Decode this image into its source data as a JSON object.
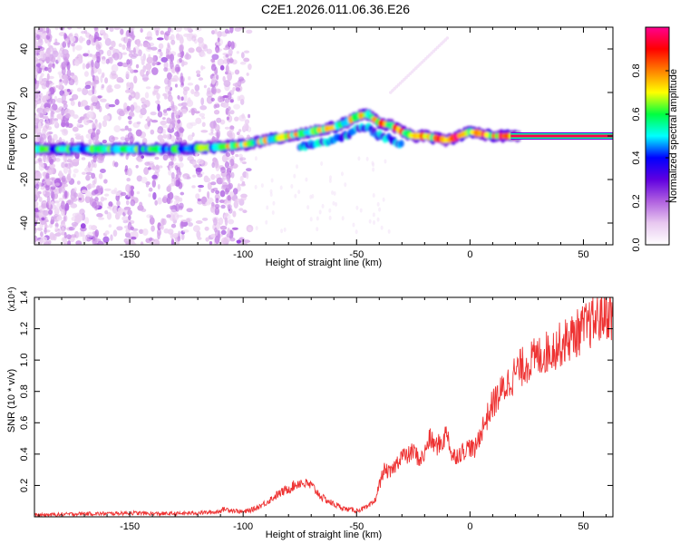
{
  "title": "C2E1.2026.011.06.36.E26",
  "colorbar": {
    "label": "Normalized spectral amplitude",
    "ticks": [
      "0.0",
      "0.2",
      "0.4",
      "0.6",
      "0.8"
    ],
    "tick_values": [
      0.0,
      0.2,
      0.4,
      0.6,
      0.8
    ],
    "range": [
      0,
      1
    ],
    "colors": [
      "#ffffff",
      "#e8c8f0",
      "#b060e0",
      "#6000e0",
      "#0000ff",
      "#00ffff",
      "#00ff40",
      "#ffff00",
      "#ff8000",
      "#ff0000",
      "#ff0090"
    ]
  },
  "chart_data": [
    {
      "type": "heatmap",
      "name": "spectrogram",
      "xlabel": "Height of straight line (km)",
      "ylabel": "Frequency (Hz)",
      "xlim": [
        -192,
        63
      ],
      "ylim": [
        -50,
        50
      ],
      "xticks": [
        -150,
        -100,
        -50,
        0,
        50
      ],
      "xtick_labels": [
        "-150",
        "-100",
        "-50",
        "0",
        "50"
      ],
      "yticks": [
        -40,
        -20,
        0,
        20,
        40
      ],
      "ytick_labels": [
        "-40",
        "-20",
        "0",
        "20",
        "40"
      ],
      "ridge": {
        "description": "dominant frequency track",
        "x": [
          -190,
          -170,
          -150,
          -130,
          -110,
          -100,
          -90,
          -80,
          -70,
          -60,
          -55,
          -50,
          -45,
          -40,
          -35,
          -30,
          -25,
          -20,
          -15,
          -10,
          -5,
          0,
          5,
          10,
          15,
          20,
          62
        ],
        "y": [
          -6,
          -6,
          -6,
          -6,
          -5,
          -4,
          -2,
          0,
          2,
          4,
          6,
          9,
          10,
          6,
          5,
          2,
          0,
          0,
          -1,
          -2,
          0,
          2,
          1,
          0,
          0,
          0,
          0
        ]
      },
      "chirp": {
        "x": [
          -35,
          -10
        ],
        "y": [
          20,
          45
        ]
      }
    },
    {
      "type": "line",
      "name": "snr",
      "xlabel": "Height of straight line (km)",
      "ylabel": "SNR (10 * v/v)",
      "y_multiplier": "(x10⁴)",
      "xlim": [
        -192,
        63
      ],
      "ylim": [
        0,
        1.4
      ],
      "xticks": [
        -150,
        -100,
        -50,
        0,
        50
      ],
      "xtick_labels": [
        "-150",
        "-100",
        "-50",
        "0",
        "50"
      ],
      "yticks": [
        0.2,
        0.4,
        0.6,
        0.8,
        1.0,
        1.2,
        1.4
      ],
      "ytick_labels": [
        "0.2",
        "0.4",
        "0.6",
        "0.8",
        "1.0",
        "1.2",
        "1.4"
      ],
      "line_color": "#ee3333",
      "series": [
        {
          "name": "SNR",
          "x": [
            -192,
            -180,
            -170,
            -160,
            -150,
            -140,
            -130,
            -120,
            -112,
            -108,
            -100,
            -95,
            -90,
            -85,
            -80,
            -75,
            -70,
            -65,
            -60,
            -55,
            -50,
            -45,
            -42,
            -40,
            -38,
            -35,
            -32,
            -30,
            -28,
            -25,
            -22,
            -20,
            -18,
            -15,
            -12,
            -10,
            -8,
            -5,
            -3,
            0,
            2,
            5,
            8,
            10,
            15,
            20,
            25,
            30,
            35,
            40,
            45,
            50,
            55,
            60,
            63
          ],
          "y": [
            0.01,
            0.015,
            0.02,
            0.02,
            0.025,
            0.02,
            0.02,
            0.025,
            0.03,
            0.05,
            0.03,
            0.05,
            0.09,
            0.14,
            0.18,
            0.22,
            0.2,
            0.12,
            0.08,
            0.05,
            0.04,
            0.06,
            0.1,
            0.2,
            0.3,
            0.28,
            0.35,
            0.4,
            0.38,
            0.42,
            0.36,
            0.4,
            0.5,
            0.45,
            0.48,
            0.55,
            0.38,
            0.4,
            0.42,
            0.45,
            0.42,
            0.55,
            0.65,
            0.72,
            0.82,
            0.92,
            0.98,
            1.02,
            1.06,
            1.1,
            1.15,
            1.2,
            1.25,
            1.3,
            1.28
          ]
        }
      ]
    }
  ]
}
